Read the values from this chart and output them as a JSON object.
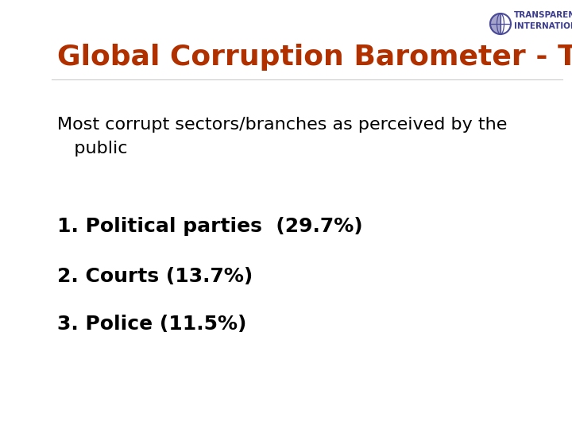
{
  "title": "Global Corruption Barometer - Trends",
  "title_color": "#B03000",
  "title_fontsize": 26,
  "subtitle": "Most corrupt sectors/branches as perceived by the\n   public",
  "subtitle_fontsize": 16,
  "subtitle_color": "#000000",
  "items": [
    "1. Political parties  (29.7%)",
    "2. Courts (13.7%)",
    "3. Police (11.5%)"
  ],
  "items_fontsize": 18,
  "items_color": "#000000",
  "background_color": "#FFFFFF",
  "left_arc_color": "#003399",
  "logo_text_color": "#3C3C8C",
  "logo_fontsize": 7.5
}
